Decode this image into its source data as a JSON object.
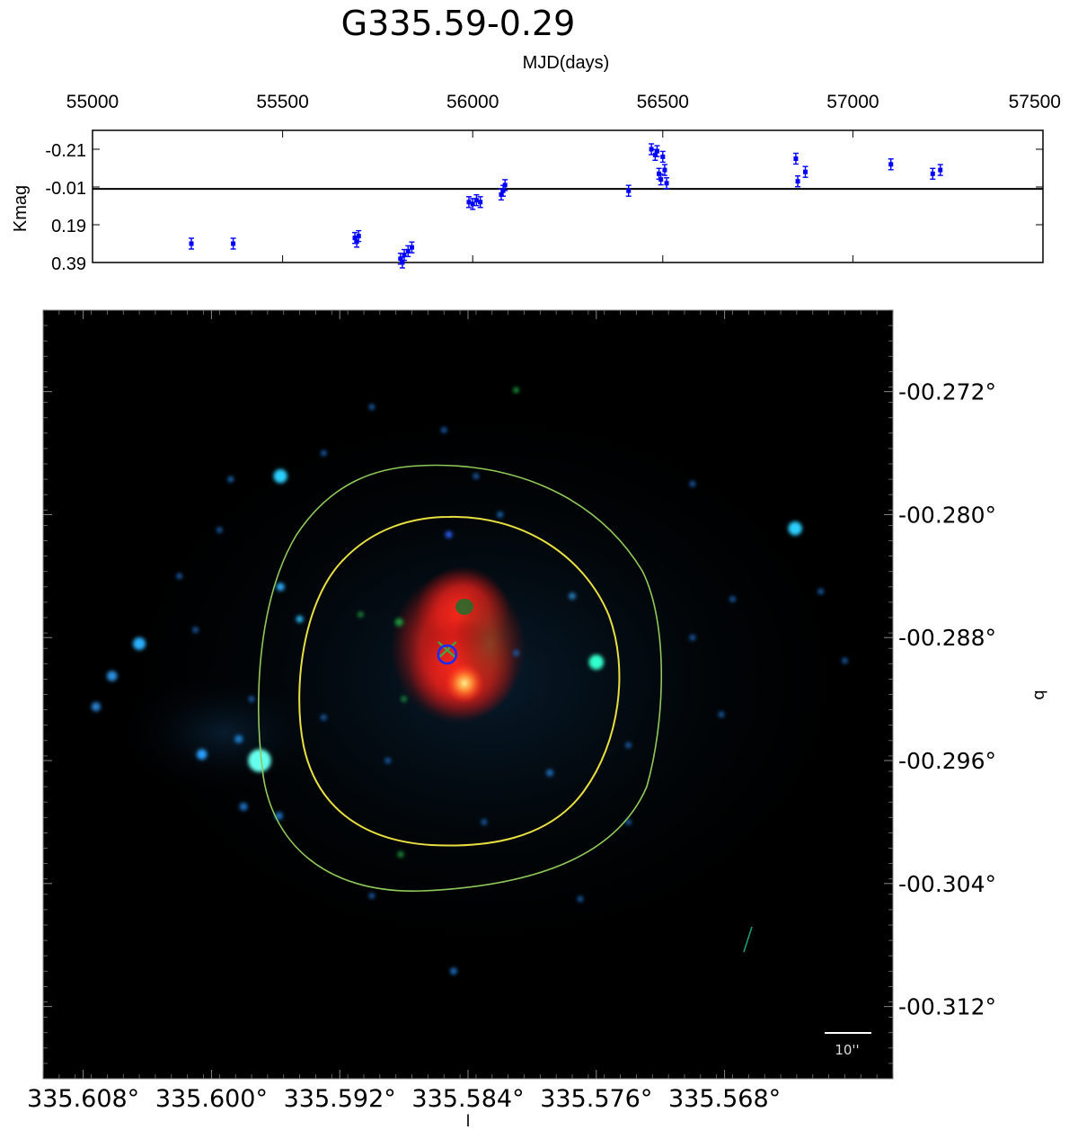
{
  "title": "G335.59-0.29",
  "chart_data": [
    {
      "type": "scatter",
      "panel": "light-curve",
      "xlabel": "MJD(days)",
      "ylabel": "Kmag",
      "xlim": [
        55000,
        57500
      ],
      "ylim": [
        0.39,
        -0.31
      ],
      "x_ticks": [
        55000,
        55500,
        56000,
        56500,
        57000,
        57500
      ],
      "y_ticks": [
        -0.21,
        -0.01,
        0.19,
        0.39
      ],
      "y_inverted": true,
      "reference_line": 0.0,
      "marker_color": "#0000ff",
      "points": [
        {
          "x": 55260,
          "y": 0.29
        },
        {
          "x": 55370,
          "y": 0.29
        },
        {
          "x": 55690,
          "y": 0.26
        },
        {
          "x": 55695,
          "y": 0.28
        },
        {
          "x": 55700,
          "y": 0.25
        },
        {
          "x": 55810,
          "y": 0.37
        },
        {
          "x": 55815,
          "y": 0.39
        },
        {
          "x": 55820,
          "y": 0.35
        },
        {
          "x": 55830,
          "y": 0.33
        },
        {
          "x": 55840,
          "y": 0.31
        },
        {
          "x": 55990,
          "y": 0.07
        },
        {
          "x": 56000,
          "y": 0.08
        },
        {
          "x": 56010,
          "y": 0.06
        },
        {
          "x": 56020,
          "y": 0.07
        },
        {
          "x": 56075,
          "y": 0.03
        },
        {
          "x": 56080,
          "y": 0.01
        },
        {
          "x": 56085,
          "y": -0.02
        },
        {
          "x": 56410,
          "y": 0.01
        },
        {
          "x": 56470,
          "y": -0.21
        },
        {
          "x": 56480,
          "y": -0.18
        },
        {
          "x": 56485,
          "y": -0.2
        },
        {
          "x": 56490,
          "y": -0.08
        },
        {
          "x": 56495,
          "y": -0.05
        },
        {
          "x": 56500,
          "y": -0.17
        },
        {
          "x": 56505,
          "y": -0.1
        },
        {
          "x": 56510,
          "y": -0.03
        },
        {
          "x": 56850,
          "y": -0.16
        },
        {
          "x": 56855,
          "y": -0.04
        },
        {
          "x": 56875,
          "y": -0.09
        },
        {
          "x": 57100,
          "y": -0.13
        },
        {
          "x": 57210,
          "y": -0.08
        },
        {
          "x": 57230,
          "y": -0.1
        }
      ]
    },
    {
      "type": "scatter",
      "panel": "sky-image",
      "xlabel": "l",
      "ylabel": "b",
      "x_tick_labels": [
        "335.608°",
        "335.600°",
        "335.592°",
        "335.584°",
        "335.576°",
        "335.568°"
      ],
      "y_tick_labels": [
        "-00.272°",
        "-00.280°",
        "-00.288°",
        "-00.296°",
        "-00.304°",
        "-00.312°"
      ],
      "x_ticks": [
        335.608,
        335.6,
        335.592,
        335.584,
        335.576,
        335.568
      ],
      "y_ticks": [
        -0.272,
        -0.28,
        -0.288,
        -0.296,
        -0.304,
        -0.312
      ],
      "xlim": [
        335.6105,
        335.5575
      ],
      "ylim": [
        -0.3167,
        -0.2667
      ],
      "scale_bar_label": "10''",
      "background_color": "#000000",
      "contour_colors": {
        "outer": "#8fc95a",
        "inner": "#e8e040"
      },
      "emission_color": "#ff2a1a",
      "marker_color": "#1a2aff",
      "cross_color": "#3aaa44",
      "target": {
        "l": 335.5853,
        "b": -0.2891
      },
      "secondary_peak": {
        "l": 335.5853,
        "b": -0.2842
      },
      "stars": [
        {
          "l": 335.6045,
          "b": -0.2884,
          "color": "#2ab0ff",
          "size": 2.2
        },
        {
          "l": 335.6062,
          "b": -0.2905,
          "color": "#2a90e0",
          "size": 1.8
        },
        {
          "l": 335.6072,
          "b": -0.2925,
          "color": "#2a80d0",
          "size": 1.6
        },
        {
          "l": 335.6006,
          "b": -0.2956,
          "color": "#2aa0ff",
          "size": 1.8
        },
        {
          "l": 335.597,
          "b": -0.296,
          "color": "#66ffee",
          "size": 4.0
        },
        {
          "l": 335.5983,
          "b": -0.2946,
          "color": "#1e7fd0",
          "size": 1.4
        },
        {
          "l": 335.5957,
          "b": -0.2775,
          "color": "#2ad0ff",
          "size": 2.4
        },
        {
          "l": 335.5957,
          "b": -0.2847,
          "color": "#2ab0ff",
          "size": 1.4
        },
        {
          "l": 335.598,
          "b": -0.299,
          "color": "#1a70c0",
          "size": 1.4
        },
        {
          "l": 335.5958,
          "b": -0.2996,
          "color": "#1a70c0",
          "size": 1.4
        },
        {
          "l": 335.5988,
          "b": -0.2777,
          "color": "#1a70c0",
          "size": 1.0
        },
        {
          "l": 335.5945,
          "b": -0.2868,
          "color": "#2ac0ff",
          "size": 1.2
        },
        {
          "l": 335.576,
          "b": -0.2896,
          "color": "#33ffcc",
          "size": 2.6
        },
        {
          "l": 335.5636,
          "b": -0.2809,
          "color": "#2ad0ff",
          "size": 2.4
        },
        {
          "l": 335.5558,
          "b": -0.2883,
          "color": "#2ad0ff",
          "size": 2.2
        },
        {
          "l": 335.5546,
          "b": -0.2905,
          "color": "#1a70c0",
          "size": 1.2
        },
        {
          "l": 335.555,
          "b": -0.292,
          "color": "#2a80b0",
          "size": 1.2
        },
        {
          "l": 335.5775,
          "b": -0.2853,
          "color": "#2a80c0",
          "size": 1.2
        },
        {
          "l": 335.5789,
          "b": -0.2968,
          "color": "#1a70c0",
          "size": 1.2
        },
        {
          "l": 335.582,
          "b": -0.28,
          "color": "#1a70c0",
          "size": 1.0
        },
        {
          "l": 335.581,
          "b": -0.2719,
          "color": "#1c9b3a",
          "size": 1.0
        },
        {
          "l": 335.5882,
          "b": -0.3021,
          "color": "#1a8a3a",
          "size": 1.1
        },
        {
          "l": 335.5849,
          "b": -0.3097,
          "color": "#1a70c0",
          "size": 1.2
        },
        {
          "l": 335.59,
          "b": -0.3048,
          "color": "#1a60b0",
          "size": 1.0
        },
        {
          "l": 335.588,
          "b": -0.292,
          "color": "#1a8a3a",
          "size": 1.0
        },
        {
          "l": 335.5883,
          "b": -0.287,
          "color": "#1e9a3a",
          "size": 1.4
        },
        {
          "l": 335.5907,
          "b": -0.2865,
          "color": "#1e8a3a",
          "size": 1.0
        },
        {
          "l": 335.581,
          "b": -0.289,
          "color": "#1a60b0",
          "size": 1.0
        },
        {
          "l": 335.583,
          "b": -0.3,
          "color": "#1a60b0",
          "size": 1.0
        },
        {
          "l": 335.5682,
          "b": -0.293,
          "color": "#1a60b0",
          "size": 1.0
        },
        {
          "l": 335.57,
          "b": -0.288,
          "color": "#1a60b0",
          "size": 1.0
        },
        {
          "l": 335.5675,
          "b": -0.2855,
          "color": "#1a60b0",
          "size": 1.0
        },
        {
          "l": 335.562,
          "b": -0.285,
          "color": "#1a60b0",
          "size": 1.0
        },
        {
          "l": 335.5605,
          "b": -0.2895,
          "color": "#1a60b0",
          "size": 1.0
        },
        {
          "l": 335.557,
          "b": -0.2895,
          "color": "#1a60b0",
          "size": 1.0
        },
        {
          "l": 335.57,
          "b": -0.278,
          "color": "#1a60b0",
          "size": 1.0
        },
        {
          "l": 335.5835,
          "b": -0.2775,
          "color": "#1a60b0",
          "size": 1.0
        },
        {
          "l": 335.5852,
          "b": -0.2813,
          "color": "#2a60ff",
          "size": 1.2
        },
        {
          "l": 335.593,
          "b": -0.2932,
          "color": "#1a60b0",
          "size": 1.0
        },
        {
          "l": 335.589,
          "b": -0.296,
          "color": "#1a60b0",
          "size": 1.0
        },
        {
          "l": 335.5855,
          "b": -0.2745,
          "color": "#1a60b0",
          "size": 1.0
        },
        {
          "l": 335.59,
          "b": -0.273,
          "color": "#1a60b0",
          "size": 1.0
        },
        {
          "l": 335.593,
          "b": -0.276,
          "color": "#1a60b0",
          "size": 1.0
        },
        {
          "l": 335.5995,
          "b": -0.281,
          "color": "#1a60b0",
          "size": 1.0
        },
        {
          "l": 335.602,
          "b": -0.284,
          "color": "#1a60b0",
          "size": 1.0
        },
        {
          "l": 335.601,
          "b": -0.2875,
          "color": "#1a60b0",
          "size": 1.0
        },
        {
          "l": 335.5975,
          "b": -0.292,
          "color": "#1a60b0",
          "size": 1.0
        },
        {
          "l": 335.577,
          "b": -0.305,
          "color": "#1a60b0",
          "size": 1.0
        },
        {
          "l": 335.574,
          "b": -0.3,
          "color": "#1a60b0",
          "size": 1.0
        },
        {
          "l": 335.574,
          "b": -0.295,
          "color": "#1a60b0",
          "size": 1.0
        }
      ]
    }
  ]
}
